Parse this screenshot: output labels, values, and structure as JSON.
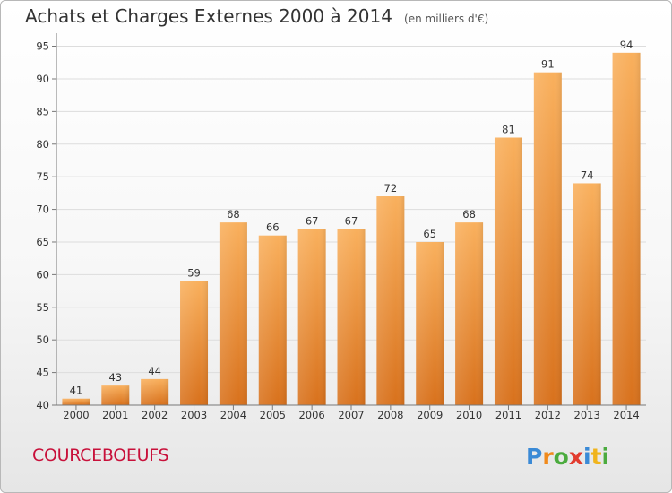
{
  "title": "Achats et Charges Externes 2000 à 2014",
  "subtitle": "(en milliers d'€)",
  "place_name": "COURCEBOEUFS",
  "logo_text": "Proxiti",
  "colors": {
    "bar_top": "#f9b05d",
    "bar_bottom": "#d8711c",
    "grid": "#dddddd",
    "place": "#c8103a"
  },
  "chart_data": {
    "type": "bar",
    "categories": [
      "2000",
      "2001",
      "2002",
      "2003",
      "2004",
      "2005",
      "2006",
      "2007",
      "2008",
      "2009",
      "2010",
      "2011",
      "2012",
      "2013",
      "2014"
    ],
    "values": [
      41,
      43,
      44,
      59,
      68,
      66,
      67,
      67,
      72,
      65,
      68,
      81,
      91,
      74,
      94
    ],
    "ylim": [
      40,
      97
    ],
    "yticks": [
      40,
      45,
      50,
      55,
      60,
      65,
      70,
      75,
      80,
      85,
      90,
      95
    ],
    "grid": true,
    "data_labels": true
  }
}
